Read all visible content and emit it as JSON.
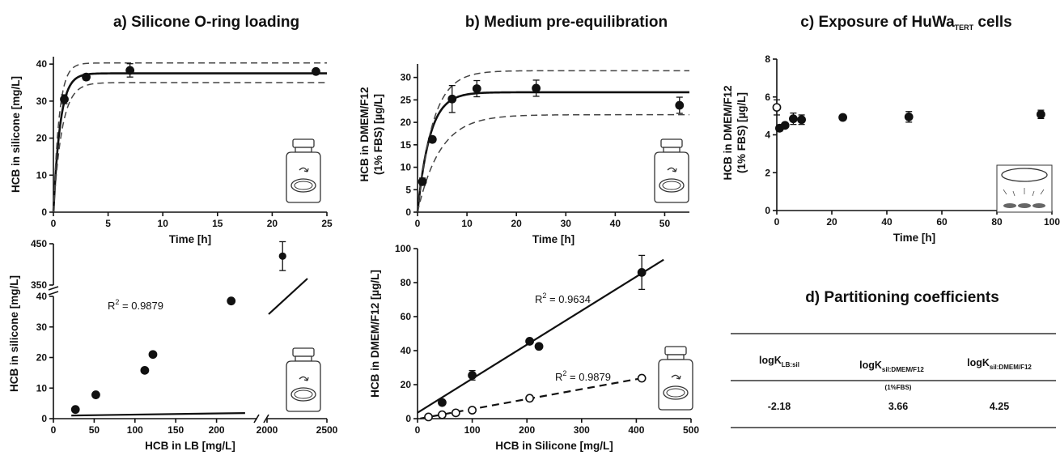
{
  "panels": {
    "a": {
      "title": "a) Silicone O-ring loading"
    },
    "b": {
      "title": "b) Medium pre-equilibration"
    },
    "c": {
      "title_prefix": "c) Exposure of HuWa",
      "title_sub": "TERT",
      "title_suffix": " cells"
    },
    "d": {
      "title": "d) Partitioning coefficients"
    }
  },
  "chart_data": [
    {
      "id": "a_top",
      "type": "scatter",
      "xlabel": "Time [h]",
      "ylabel": "HCB in silicone [mg/L]",
      "xlim": [
        0,
        25
      ],
      "ylim": [
        0,
        42
      ],
      "xticks": [
        0,
        5,
        10,
        15,
        20,
        25
      ],
      "yticks": [
        0,
        10,
        20,
        30,
        40
      ],
      "points": [
        [
          1,
          30.5
        ],
        [
          3,
          36.5
        ],
        [
          7,
          38.3
        ],
        [
          24,
          38.0
        ]
      ],
      "errors": [
        1.2,
        0.8,
        1.8,
        0.5
      ],
      "fit": {
        "kind": "exp_saturation",
        "plateau": 37.5,
        "k": 1.6,
        "upper_plateau": 40.3,
        "lower_plateau": 35.0
      }
    },
    {
      "id": "b_top",
      "type": "scatter",
      "xlabel": "Time [h]",
      "ylabel": "HCB in DMEM/F12 (1% FBS) [µg/L]",
      "xlim": [
        0,
        55
      ],
      "ylim": [
        0,
        33
      ],
      "xticks": [
        0,
        10,
        20,
        30,
        40,
        50
      ],
      "yticks": [
        0,
        5,
        10,
        15,
        20,
        25,
        30
      ],
      "points": [
        [
          1,
          6.8
        ],
        [
          3,
          16.2
        ],
        [
          7,
          25.2
        ],
        [
          12,
          27.5
        ],
        [
          24,
          27.6
        ],
        [
          53,
          23.8
        ]
      ],
      "errors": [
        0.8,
        0.6,
        3.0,
        1.8,
        1.8,
        1.8
      ],
      "fit": {
        "kind": "exp_saturation",
        "plateau": 26.7,
        "k": 0.4,
        "upper_plateau": 31.5,
        "lower_plateau": 21.7
      }
    },
    {
      "id": "c_top",
      "type": "scatter",
      "xlabel": "Time [h]",
      "ylabel": "HCB in DMEM/F12 (1% FBS) [µg/L]",
      "xlim": [
        0,
        100
      ],
      "ylim": [
        0,
        8
      ],
      "xticks": [
        0,
        20,
        40,
        60,
        80,
        100
      ],
      "yticks": [
        0,
        2,
        4,
        6,
        8
      ],
      "open_points": [
        [
          0,
          5.45
        ]
      ],
      "open_errors": [
        0.4
      ],
      "points": [
        [
          1,
          4.35
        ],
        [
          3,
          4.5
        ],
        [
          6,
          4.85
        ],
        [
          9,
          4.8
        ],
        [
          24,
          4.92
        ],
        [
          48,
          4.95
        ],
        [
          96,
          5.08
        ]
      ],
      "errors": [
        0.15,
        0.12,
        0.3,
        0.25,
        0.1,
        0.28,
        0.22
      ]
    },
    {
      "id": "a_bottom",
      "type": "scatter",
      "xlabel": "HCB in LB [mg/L]",
      "ylabel": "HCB in silicone [mg/L]",
      "xlim": [
        0,
        2500
      ],
      "ylim": [
        0,
        450
      ],
      "xticks": [
        0,
        50,
        100,
        150,
        200,
        2000,
        2500
      ],
      "yticks": [
        0,
        10,
        20,
        30,
        40,
        350,
        450
      ],
      "axis_breaks": {
        "x": [
          250,
          2000
        ],
        "y": [
          40,
          350
        ]
      },
      "annotations": [
        {
          "text": "R",
          "sup": "2",
          "after": " = 0.9879"
        }
      ],
      "points": [
        [
          27,
          3.0
        ],
        [
          52,
          7.8
        ],
        [
          112,
          15.8
        ],
        [
          122,
          21.0
        ],
        [
          218,
          38.5
        ],
        [
          2130,
          420
        ]
      ],
      "errors": [
        0.5,
        0.4,
        0.4,
        0.4,
        0.6,
        35
      ],
      "fit": {
        "kind": "linear",
        "slope": 0.183,
        "intercept": -3.0
      }
    },
    {
      "id": "b_bottom",
      "type": "scatter",
      "xlabel": "HCB in Silicone [mg/L]",
      "ylabel": "HCB in DMEM/F12 [µg/L]",
      "xlim": [
        0,
        500
      ],
      "ylim": [
        0,
        100
      ],
      "xticks": [
        0,
        100,
        200,
        300,
        400,
        500
      ],
      "yticks": [
        0,
        20,
        40,
        60,
        80,
        100
      ],
      "annotations": [
        {
          "text": "R",
          "sup": "2",
          "after": " = 0.9634"
        },
        {
          "text": "R",
          "sup": "2",
          "after": " = 0.9879"
        }
      ],
      "series": [
        {
          "marker": "filled",
          "points": [
            [
              45,
              9.5
            ],
            [
              100,
              25.5
            ],
            [
              205,
              45.5
            ],
            [
              222,
              42.5
            ],
            [
              410,
              86
            ]
          ],
          "errors": [
            0.8,
            2.8,
            0.8,
            0.8,
            10
          ],
          "fit": {
            "kind": "linear",
            "slope": 0.2,
            "intercept": 3.5,
            "dash": false
          }
        },
        {
          "marker": "open",
          "points": [
            [
              20,
              1.0
            ],
            [
              45,
              2.3
            ],
            [
              70,
              3.4
            ],
            [
              100,
              5.0
            ],
            [
              205,
              12.0
            ],
            [
              410,
              23.8
            ]
          ],
          "errors": [
            0.3,
            0.3,
            0.3,
            0.4,
            0.6,
            0.8
          ],
          "fit": {
            "kind": "linear",
            "slope": 0.0585,
            "intercept": -0.2,
            "dash": true
          }
        }
      ]
    }
  ],
  "table": {
    "headers": [
      {
        "main": "logK",
        "sub": "LB:sil",
        "extra": ""
      },
      {
        "main": "logK",
        "sub": "sil:DMEM/F12",
        "extra": "(1%FBS)"
      },
      {
        "main": "logK",
        "sub": "sil:DMEM/F12",
        "extra": ""
      }
    ],
    "values": [
      "-2.18",
      "3.66",
      "4.25"
    ]
  }
}
